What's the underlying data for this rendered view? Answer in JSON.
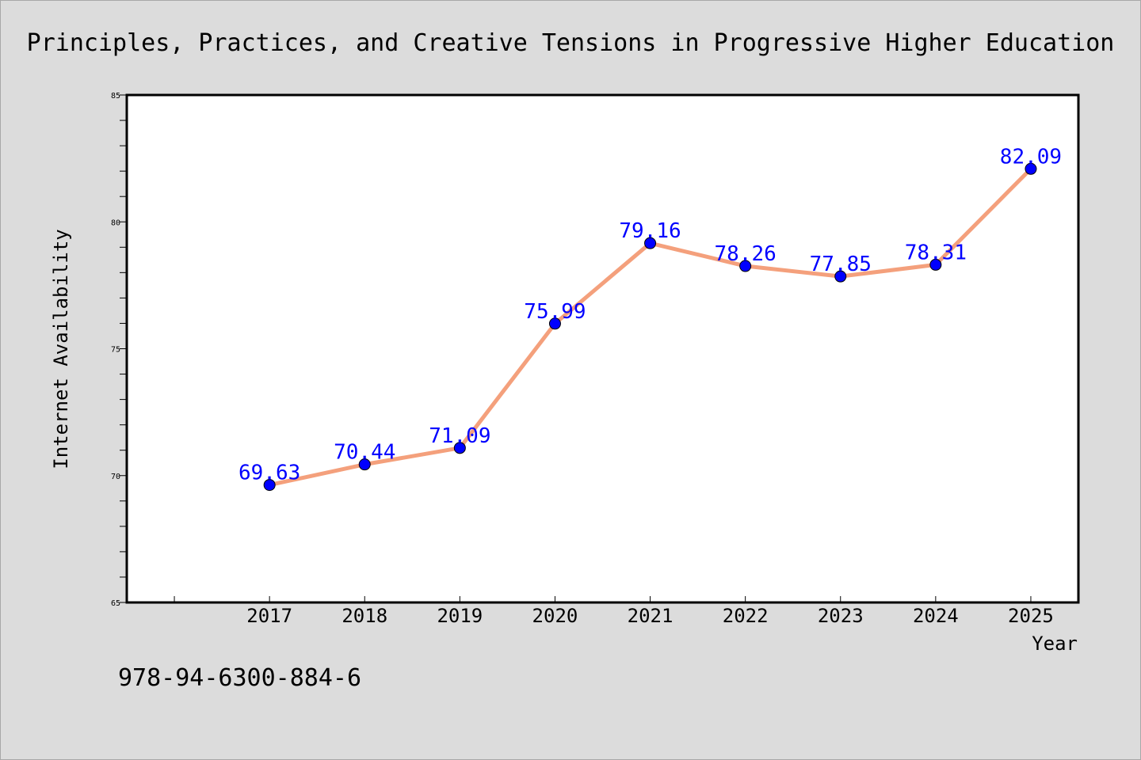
{
  "colors": {
    "background": "#dcdcdc",
    "plot_background": "#ffffff",
    "line": "#f4a07c",
    "marker": "#0000ff",
    "data_label": "#0000ff",
    "axis": "#000000"
  },
  "footer_text": "978-94-6300-884-6",
  "chart_data": {
    "type": "line",
    "title": "Principles, Practices, and Creative Tensions in Progressive Higher Education",
    "xlabel": "Year",
    "ylabel": "Internet Availability",
    "categories": [
      "2017",
      "2018",
      "2019",
      "2020",
      "2021",
      "2022",
      "2023",
      "2024",
      "2025"
    ],
    "series": [
      {
        "values": [
          69.63,
          70.44,
          71.09,
          75.99,
          79.16,
          78.26,
          77.85,
          78.31,
          82.09
        ],
        "data_labels": [
          "69.63",
          "70.44",
          "71.09",
          "75.99",
          "79.16",
          "78.26",
          "77.85",
          "78.31",
          "82.09"
        ]
      }
    ],
    "ylim": [
      65,
      85
    ],
    "xlim": [
      2015.5,
      2025.5
    ],
    "yticks": [
      "65",
      "70",
      "75",
      "80",
      "85"
    ],
    "y_minor_step": 1,
    "extra_x_tick": 2016,
    "grid": false,
    "legend": "none"
  }
}
